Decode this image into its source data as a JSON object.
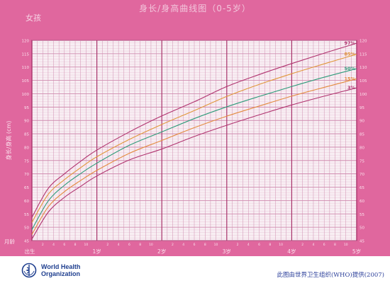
{
  "header": {
    "title": "身长/身高曲线图（0-5岁）",
    "sex": "女孩"
  },
  "footer": {
    "org_line1": "World Health",
    "org_line2": "Organization",
    "credit": "此图由世界卫生组织(WHO)提供(2007)",
    "logo_icon": "who-emblem-icon"
  },
  "colors": {
    "panel": "#e0679e",
    "p3": "#b0336f",
    "p15": "#e38b3f",
    "p50": "#2e9b7a",
    "p85": "#e0973a",
    "p97": "#b0336f"
  },
  "chart_data": {
    "type": "line",
    "title": "身长/身高曲线图（0-5岁）",
    "ylabel": "身长/身高 (cm)",
    "xlabel": "月龄",
    "ylim": [
      45,
      120
    ],
    "xlim": [
      0,
      60
    ],
    "y_ticks": [
      45,
      50,
      55,
      60,
      65,
      70,
      75,
      80,
      85,
      90,
      95,
      100,
      105,
      110,
      115,
      120
    ],
    "x_month_ticks": [
      2,
      4,
      6,
      8,
      10,
      2,
      4,
      6,
      8,
      10,
      2,
      4,
      6,
      8,
      10,
      2,
      4,
      6,
      8,
      10,
      2,
      4,
      6,
      8,
      10
    ],
    "x_year_labels": [
      {
        "month": 0,
        "label": "出生"
      },
      {
        "month": 12,
        "label": "1岁"
      },
      {
        "month": 24,
        "label": "2岁"
      },
      {
        "month": 36,
        "label": "3岁"
      },
      {
        "month": 48,
        "label": "4岁"
      },
      {
        "month": 60,
        "label": "5岁"
      }
    ],
    "x": [
      0,
      3,
      6,
      9,
      12,
      18,
      24,
      30,
      36,
      42,
      48,
      54,
      60
    ],
    "series": [
      {
        "name": "97%",
        "values": [
          53.7,
          64.5,
          70.0,
          74.7,
          78.9,
          85.7,
          91.7,
          97.0,
          102.7,
          107.2,
          111.3,
          115.2,
          118.9
        ]
      },
      {
        "name": "85%",
        "values": [
          51.8,
          62.3,
          67.8,
          72.3,
          76.4,
          82.9,
          88.5,
          93.7,
          99.0,
          103.5,
          107.5,
          111.2,
          114.8
        ]
      },
      {
        "name": "50%",
        "values": [
          49.1,
          59.8,
          65.7,
          70.1,
          74.0,
          80.7,
          85.7,
          90.7,
          95.1,
          99.0,
          102.7,
          106.2,
          109.4
        ]
      },
      {
        "name": "15%",
        "values": [
          47.3,
          57.6,
          63.3,
          67.5,
          71.3,
          77.7,
          82.5,
          87.3,
          91.6,
          95.4,
          99.1,
          102.4,
          105.6
        ]
      },
      {
        "name": "3%",
        "values": [
          45.6,
          55.6,
          61.2,
          65.3,
          69.2,
          75.2,
          79.3,
          84.0,
          88.2,
          92.1,
          95.8,
          99.1,
          102.2
        ]
      }
    ]
  }
}
